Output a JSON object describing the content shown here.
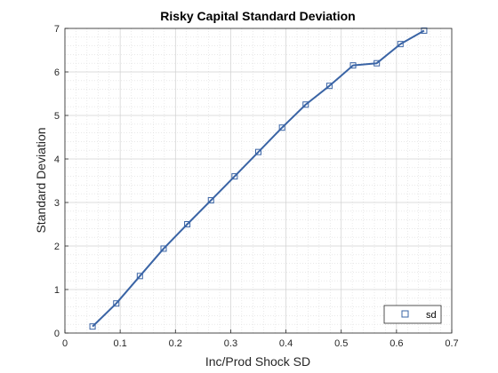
{
  "chart_data": {
    "type": "line",
    "title": "Risky Capital Standard Deviation",
    "xlabel": "Inc/Prod Shock SD",
    "ylabel": "Standard Deviation",
    "xlim": [
      0,
      0.7
    ],
    "ylim": [
      0,
      7
    ],
    "x_ticks": [
      "0",
      "0.1",
      "0.2",
      "0.3",
      "0.4",
      "0.5",
      "0.6",
      "0.7"
    ],
    "y_ticks": [
      "0",
      "1",
      "2",
      "3",
      "4",
      "5",
      "6",
      "7"
    ],
    "grid": "on, with minor grid",
    "legend_location": "bottom-right",
    "series": [
      {
        "name": "sd",
        "color": "#3a64a5",
        "marker": "square",
        "x": [
          0.05,
          0.0929,
          0.1357,
          0.1786,
          0.2214,
          0.2643,
          0.3071,
          0.35,
          0.3929,
          0.4357,
          0.4786,
          0.5214,
          0.5643,
          0.6071,
          0.65
        ],
        "y": [
          0.15,
          0.68,
          1.31,
          1.94,
          2.5,
          3.05,
          3.6,
          4.16,
          4.72,
          5.25,
          5.68,
          6.15,
          6.2,
          6.64,
          6.95
        ]
      }
    ]
  }
}
